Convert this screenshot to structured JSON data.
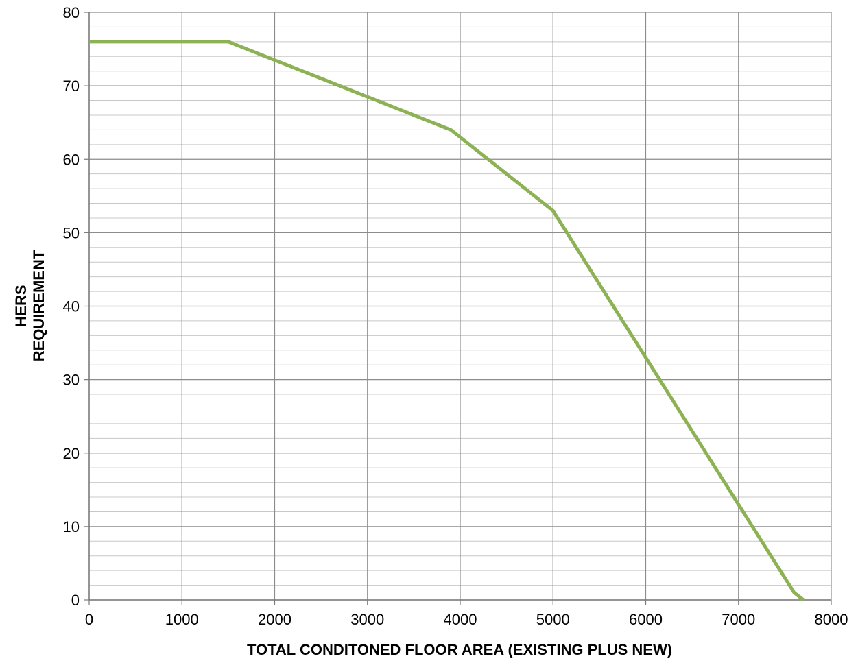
{
  "chart_data": {
    "type": "line",
    "title": "",
    "xlabel": "TOTAL CONDITONED FLOOR AREA (EXISTING PLUS NEW)",
    "ylabel_lines": [
      "HERS",
      "REQUIREMENT"
    ],
    "xlim": [
      0,
      8000
    ],
    "ylim": [
      0,
      80
    ],
    "x_major_step": 1000,
    "y_major_step": 10,
    "y_minor_step": 2,
    "grid": true,
    "legend": "none",
    "x_ticks": [
      "0",
      "1000",
      "2000",
      "3000",
      "4000",
      "5000",
      "6000",
      "7000",
      "8000"
    ],
    "y_ticks": [
      "0",
      "10",
      "20",
      "30",
      "40",
      "50",
      "60",
      "70",
      "80"
    ],
    "series": [
      {
        "color": "#8db255",
        "x": [
          0,
          1500,
          3900,
          5000,
          6000,
          7000,
          7600,
          7700
        ],
        "y": [
          76,
          76,
          64,
          53,
          33,
          13,
          1,
          0
        ]
      }
    ]
  }
}
